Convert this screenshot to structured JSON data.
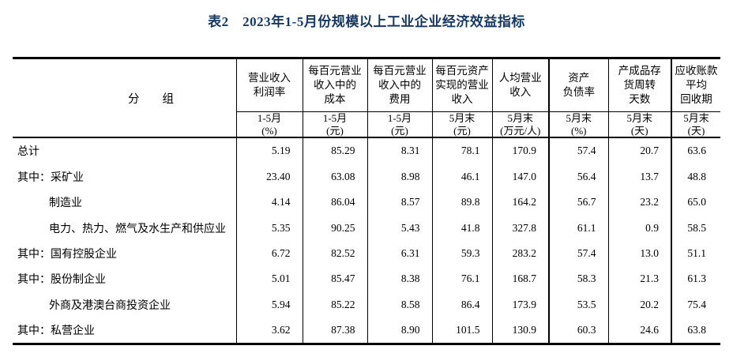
{
  "title": "表2　2023年1-5月份规模以上工业企业经济效益指标",
  "colors": {
    "title_text": "#17375E",
    "table_text": "#000000",
    "border": "#000000",
    "background": "#ffffff"
  },
  "table": {
    "group_header": "分　　组",
    "columns": [
      {
        "name": "营业收入\n利润率",
        "period": "1-5月",
        "unit": "(%)",
        "thick_left": false
      },
      {
        "name": "每百元营业\n收入中的\n成本",
        "period": "1-5月",
        "unit": "(元)",
        "thick_left": false
      },
      {
        "name": "每百元营业\n收入中的\n费用",
        "period": "1-5月",
        "unit": "(元)",
        "thick_left": false
      },
      {
        "name": "每百元资产\n实现的营业\n收入",
        "period": "5月末",
        "unit": "(元)",
        "thick_left": false
      },
      {
        "name": "人均营业\n收入",
        "period": "5月末",
        "unit": "(万元/人)",
        "thick_left": false
      },
      {
        "name": "资产\n负债率",
        "period": "5月末",
        "unit": "(%)",
        "thick_left": true
      },
      {
        "name": "产成品存\n货周转\n天数",
        "period": "5月末",
        "unit": "(天)",
        "thick_left": false
      },
      {
        "name": "应收账款\n平均\n回收期",
        "period": "5月末",
        "unit": "(天)",
        "thick_left": true
      }
    ],
    "rows": [
      {
        "label": "总计",
        "indent": false,
        "values": [
          "5.19",
          "85.29",
          "8.31",
          "78.1",
          "170.9",
          "57.4",
          "20.7",
          "63.6"
        ]
      },
      {
        "label": "其中：采矿业",
        "indent": false,
        "values": [
          "23.40",
          "63.08",
          "8.98",
          "46.1",
          "147.0",
          "56.4",
          "13.7",
          "48.8"
        ]
      },
      {
        "label": "制造业",
        "indent": true,
        "values": [
          "4.14",
          "86.04",
          "8.57",
          "89.8",
          "164.2",
          "56.7",
          "23.2",
          "65.0"
        ]
      },
      {
        "label": "电力、热力、燃气及水生产和供应业",
        "indent": true,
        "values": [
          "5.35",
          "90.25",
          "5.43",
          "41.8",
          "327.8",
          "61.1",
          "0.9",
          "58.5"
        ]
      },
      {
        "label": "其中：国有控股企业",
        "indent": false,
        "values": [
          "6.72",
          "82.52",
          "6.31",
          "59.3",
          "283.2",
          "57.4",
          "13.0",
          "51.1"
        ]
      },
      {
        "label": "其中：股份制企业",
        "indent": false,
        "values": [
          "5.01",
          "85.47",
          "8.38",
          "76.1",
          "168.7",
          "58.3",
          "21.3",
          "61.3"
        ]
      },
      {
        "label": "外商及港澳台商投资企业",
        "indent": true,
        "values": [
          "5.94",
          "85.22",
          "8.58",
          "86.4",
          "173.9",
          "53.5",
          "20.2",
          "75.4"
        ]
      },
      {
        "label": "其中：私营企业",
        "indent": false,
        "values": [
          "3.62",
          "87.38",
          "8.90",
          "101.5",
          "130.9",
          "60.3",
          "24.6",
          "63.8"
        ]
      }
    ]
  }
}
